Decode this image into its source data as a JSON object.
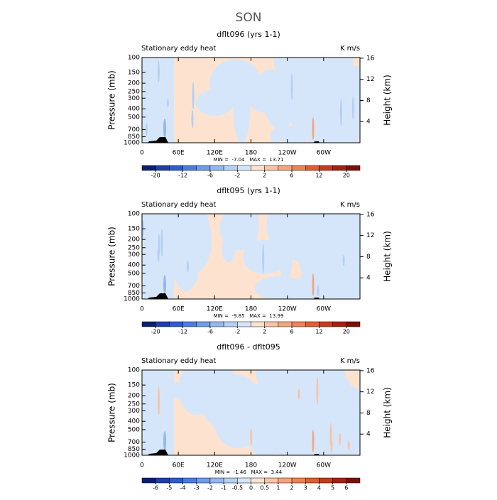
{
  "title": "SON",
  "chart_data": [
    {
      "type": "contour",
      "title": "dflt096 (yrs 1-1)",
      "subtitle": "Stationary eddy heat",
      "units": "K m/s",
      "ylabel": "Pressure (mb)",
      "y2label": "Height (km)",
      "ylim": [
        1000,
        100
      ],
      "log_y": true,
      "yticks": [
        100,
        150,
        200,
        250,
        300,
        400,
        500,
        700,
        850,
        1000
      ],
      "y2ticks": [
        4,
        8,
        12,
        16
      ],
      "xlim": [
        0,
        360
      ],
      "xticks": [
        0,
        {
          "value": 60,
          "label": "60E"
        },
        {
          "value": 120,
          "label": "120E"
        },
        180,
        {
          "value": 240,
          "label": "120W"
        },
        {
          "value": 300,
          "label": "60W"
        }
      ],
      "stats": "MIN =  -7.04   MAX =  13.71",
      "colorbar": {
        "labels": [
          -20,
          -12,
          -6,
          -2,
          2,
          6,
          12,
          20
        ],
        "colors": [
          "#0a1f6e",
          "#1e3fa8",
          "#2f5ccc",
          "#4a7de0",
          "#6e9ce8",
          "#92b8f0",
          "#b4d0f5",
          "#d6e6fa",
          "#fde3cf",
          "#f8c4a4",
          "#f3a67e",
          "#ea8456",
          "#de5f33",
          "#c43c1c",
          "#a2220e",
          "#7a1006"
        ]
      }
    },
    {
      "type": "contour",
      "title": "dflt095 (yrs 1-1)",
      "subtitle": "Stationary eddy heat",
      "units": "K m/s",
      "ylabel": "Pressure (mb)",
      "y2label": "Height (km)",
      "ylim": [
        1000,
        100
      ],
      "log_y": true,
      "yticks": [
        100,
        150,
        200,
        250,
        300,
        400,
        500,
        700,
        850,
        1000
      ],
      "y2ticks": [
        4,
        8,
        12,
        16
      ],
      "xlim": [
        0,
        360
      ],
      "xticks": [
        0,
        {
          "value": 60,
          "label": "60E"
        },
        {
          "value": 120,
          "label": "120E"
        },
        180,
        {
          "value": 240,
          "label": "120W"
        },
        {
          "value": 300,
          "label": "60W"
        }
      ],
      "stats": "MIN =  -9.85   MAX =  13.99",
      "colorbar": {
        "labels": [
          -20,
          -12,
          -6,
          -2,
          2,
          6,
          12,
          20
        ],
        "colors": [
          "#0a1f6e",
          "#1e3fa8",
          "#2f5ccc",
          "#4a7de0",
          "#6e9ce8",
          "#92b8f0",
          "#b4d0f5",
          "#d6e6fa",
          "#fde3cf",
          "#f8c4a4",
          "#f3a67e",
          "#ea8456",
          "#de5f33",
          "#c43c1c",
          "#a2220e",
          "#7a1006"
        ]
      }
    },
    {
      "type": "contour",
      "title": "dflt096 - dflt095",
      "subtitle": "Stationary eddy heat",
      "units": "K m/s",
      "ylabel": "Pressure (mb)",
      "y2label": "Height (km)",
      "ylim": [
        1000,
        100
      ],
      "log_y": true,
      "yticks": [
        100,
        150,
        200,
        250,
        300,
        400,
        500,
        700,
        850,
        1000
      ],
      "y2ticks": [
        4,
        8,
        12,
        16
      ],
      "xlim": [
        0,
        360
      ],
      "xticks": [
        0,
        {
          "value": 60,
          "label": "60E"
        },
        {
          "value": 120,
          "label": "120E"
        },
        180,
        {
          "value": 240,
          "label": "120W"
        },
        {
          "value": 300,
          "label": "60W"
        }
      ],
      "stats": "MIN =  -1.46   MAX =  3.44",
      "colorbar": {
        "labels": [
          -6,
          -5,
          -4,
          -3,
          -2,
          -1,
          -0.5,
          0,
          0.5,
          1,
          2,
          3,
          4,
          5,
          6
        ],
        "colors": [
          "#0a1f6e",
          "#1e3fa8",
          "#2f5ccc",
          "#4a7de0",
          "#6e9ce8",
          "#92b8f0",
          "#b4d0f5",
          "#d6e6fa",
          "#fde3cf",
          "#f8c4a4",
          "#f3a67e",
          "#ea8456",
          "#de5f33",
          "#c43c1c",
          "#a2220e",
          "#7a1006"
        ]
      }
    }
  ]
}
